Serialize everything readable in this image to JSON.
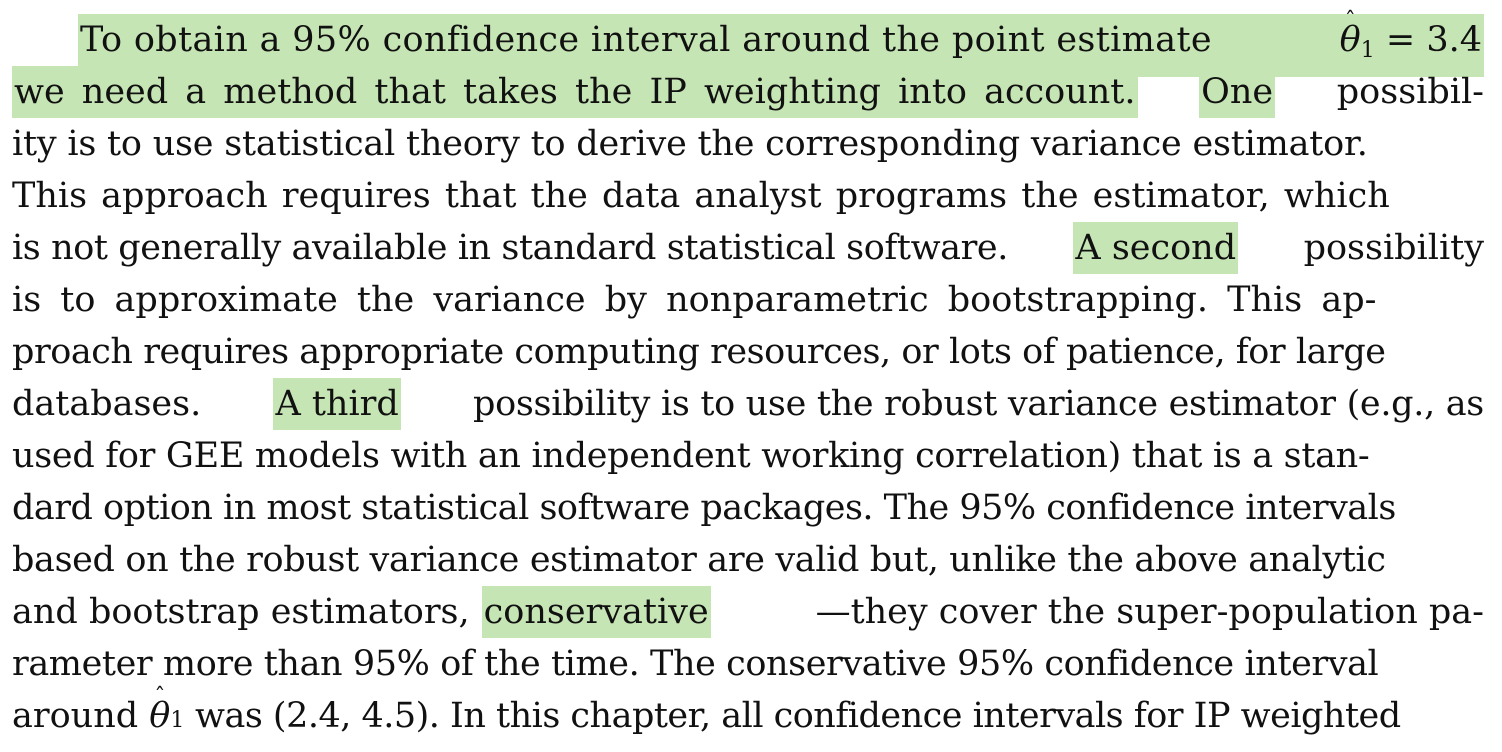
{
  "paragraph": {
    "line1": {
      "hl": "To obtain a 95% confidence interval around the point estimate ",
      "theta": "θ",
      "sub": "1",
      "rest": " = 3.4"
    },
    "line2": {
      "hl_a": "we need a method that takes the IP weighting into account.",
      "hl_b": "One",
      "rest": "possibil-"
    },
    "line3": "ity is to use statistical theory to derive the corresponding variance estimator.",
    "line4": "This approach requires that the data analyst programs the estimator, which",
    "line5": {
      "pre": "is not generally available in standard statistical software.",
      "hl": "A second",
      "post": "possibility"
    },
    "line6": "is to approximate the variance by nonparametric bootstrapping. This ap-",
    "line7": "proach requires appropriate computing resources, or lots of patience, for large",
    "line8": {
      "pre": "databases.",
      "hl": "A third",
      "post": "possibility is to use the robust variance estimator (e.g., as"
    },
    "line9": "used for GEE models with an independent working correlation) that is a stan-",
    "line10": "dard option in most statistical software packages. The 95% confidence intervals",
    "line11": "based on the robust variance estimator are valid but, unlike the above analytic",
    "line12": {
      "pre": "and bootstrap estimators,",
      "hl": "conservative",
      "post": "—they cover the super-population pa-"
    },
    "line13": "rameter more than 95% of the time. The conservative 95% confidence interval",
    "line14": {
      "pre": "around ",
      "theta": "θ",
      "sub": "1",
      "post": " was (2.4, 4.5). In this chapter, all confidence intervals for IP weighted"
    }
  },
  "colors": {
    "highlight": "#c6e5b5",
    "text": "#111111"
  }
}
